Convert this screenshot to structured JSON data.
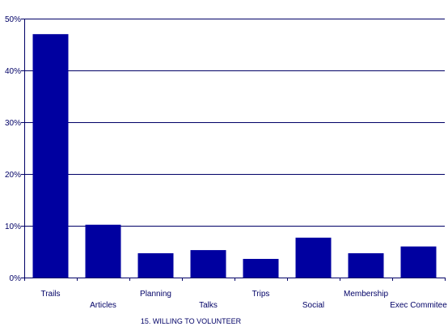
{
  "chart_data": {
    "type": "bar",
    "title": "",
    "xlabel": "15. WILLING TO VOLUNTEER",
    "ylabel": "",
    "categories": [
      "Trails",
      "Articles",
      "Planning",
      "Talks",
      "Trips",
      "Social",
      "Membership",
      "Exec Commitee"
    ],
    "values": [
      47,
      10.2,
      4.7,
      5.3,
      3.6,
      7.7,
      4.7,
      6.0
    ],
    "ylim": [
      0,
      50
    ],
    "yticks": [
      0,
      10,
      20,
      30,
      40,
      50
    ],
    "ytick_labels": [
      "0%",
      "10%",
      "20%",
      "30%",
      "40%",
      "50%"
    ],
    "grid": true,
    "legend": "none",
    "bar_color": "#0000A0",
    "axis_color": "#000066"
  }
}
